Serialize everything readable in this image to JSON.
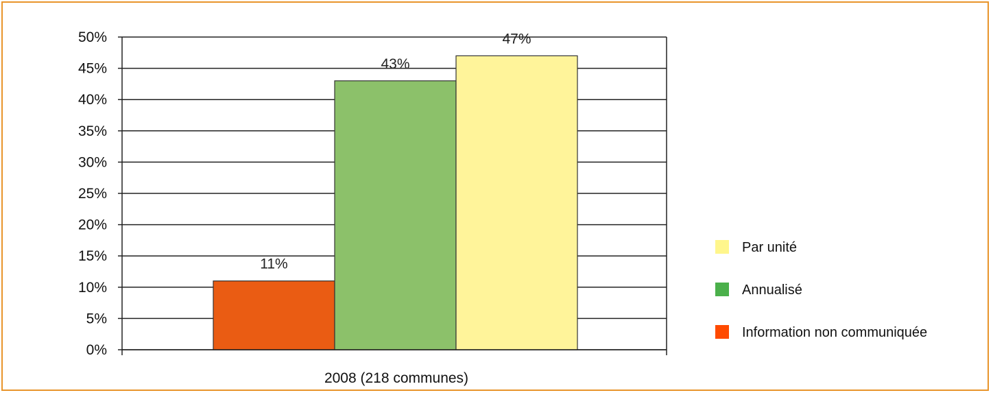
{
  "chart_data": {
    "type": "bar",
    "categories": [
      "2008 (218 communes)"
    ],
    "series": [
      {
        "name": "Information non communiquée",
        "values": [
          11
        ],
        "color": "#ea5c13",
        "legend_color": "#ff4a00"
      },
      {
        "name": "Annualisé",
        "values": [
          43
        ],
        "color": "#8cc16a",
        "legend_color": "#4bb04b"
      },
      {
        "name": "Par unité",
        "values": [
          47
        ],
        "color": "#fff49a",
        "legend_color": "#fff68c"
      }
    ],
    "data_labels": [
      "11%",
      "43%",
      "47%"
    ],
    "ylim": [
      0,
      50
    ],
    "yticks": [
      "0%",
      "5%",
      "10%",
      "15%",
      "20%",
      "25%",
      "30%",
      "35%",
      "40%",
      "45%",
      "50%"
    ],
    "grid": true,
    "legend": {
      "placement": "right",
      "entries": [
        "Par unité",
        "Annualisé",
        "Information non communiquée"
      ]
    },
    "title": "",
    "xlabel": "",
    "ylabel": ""
  }
}
